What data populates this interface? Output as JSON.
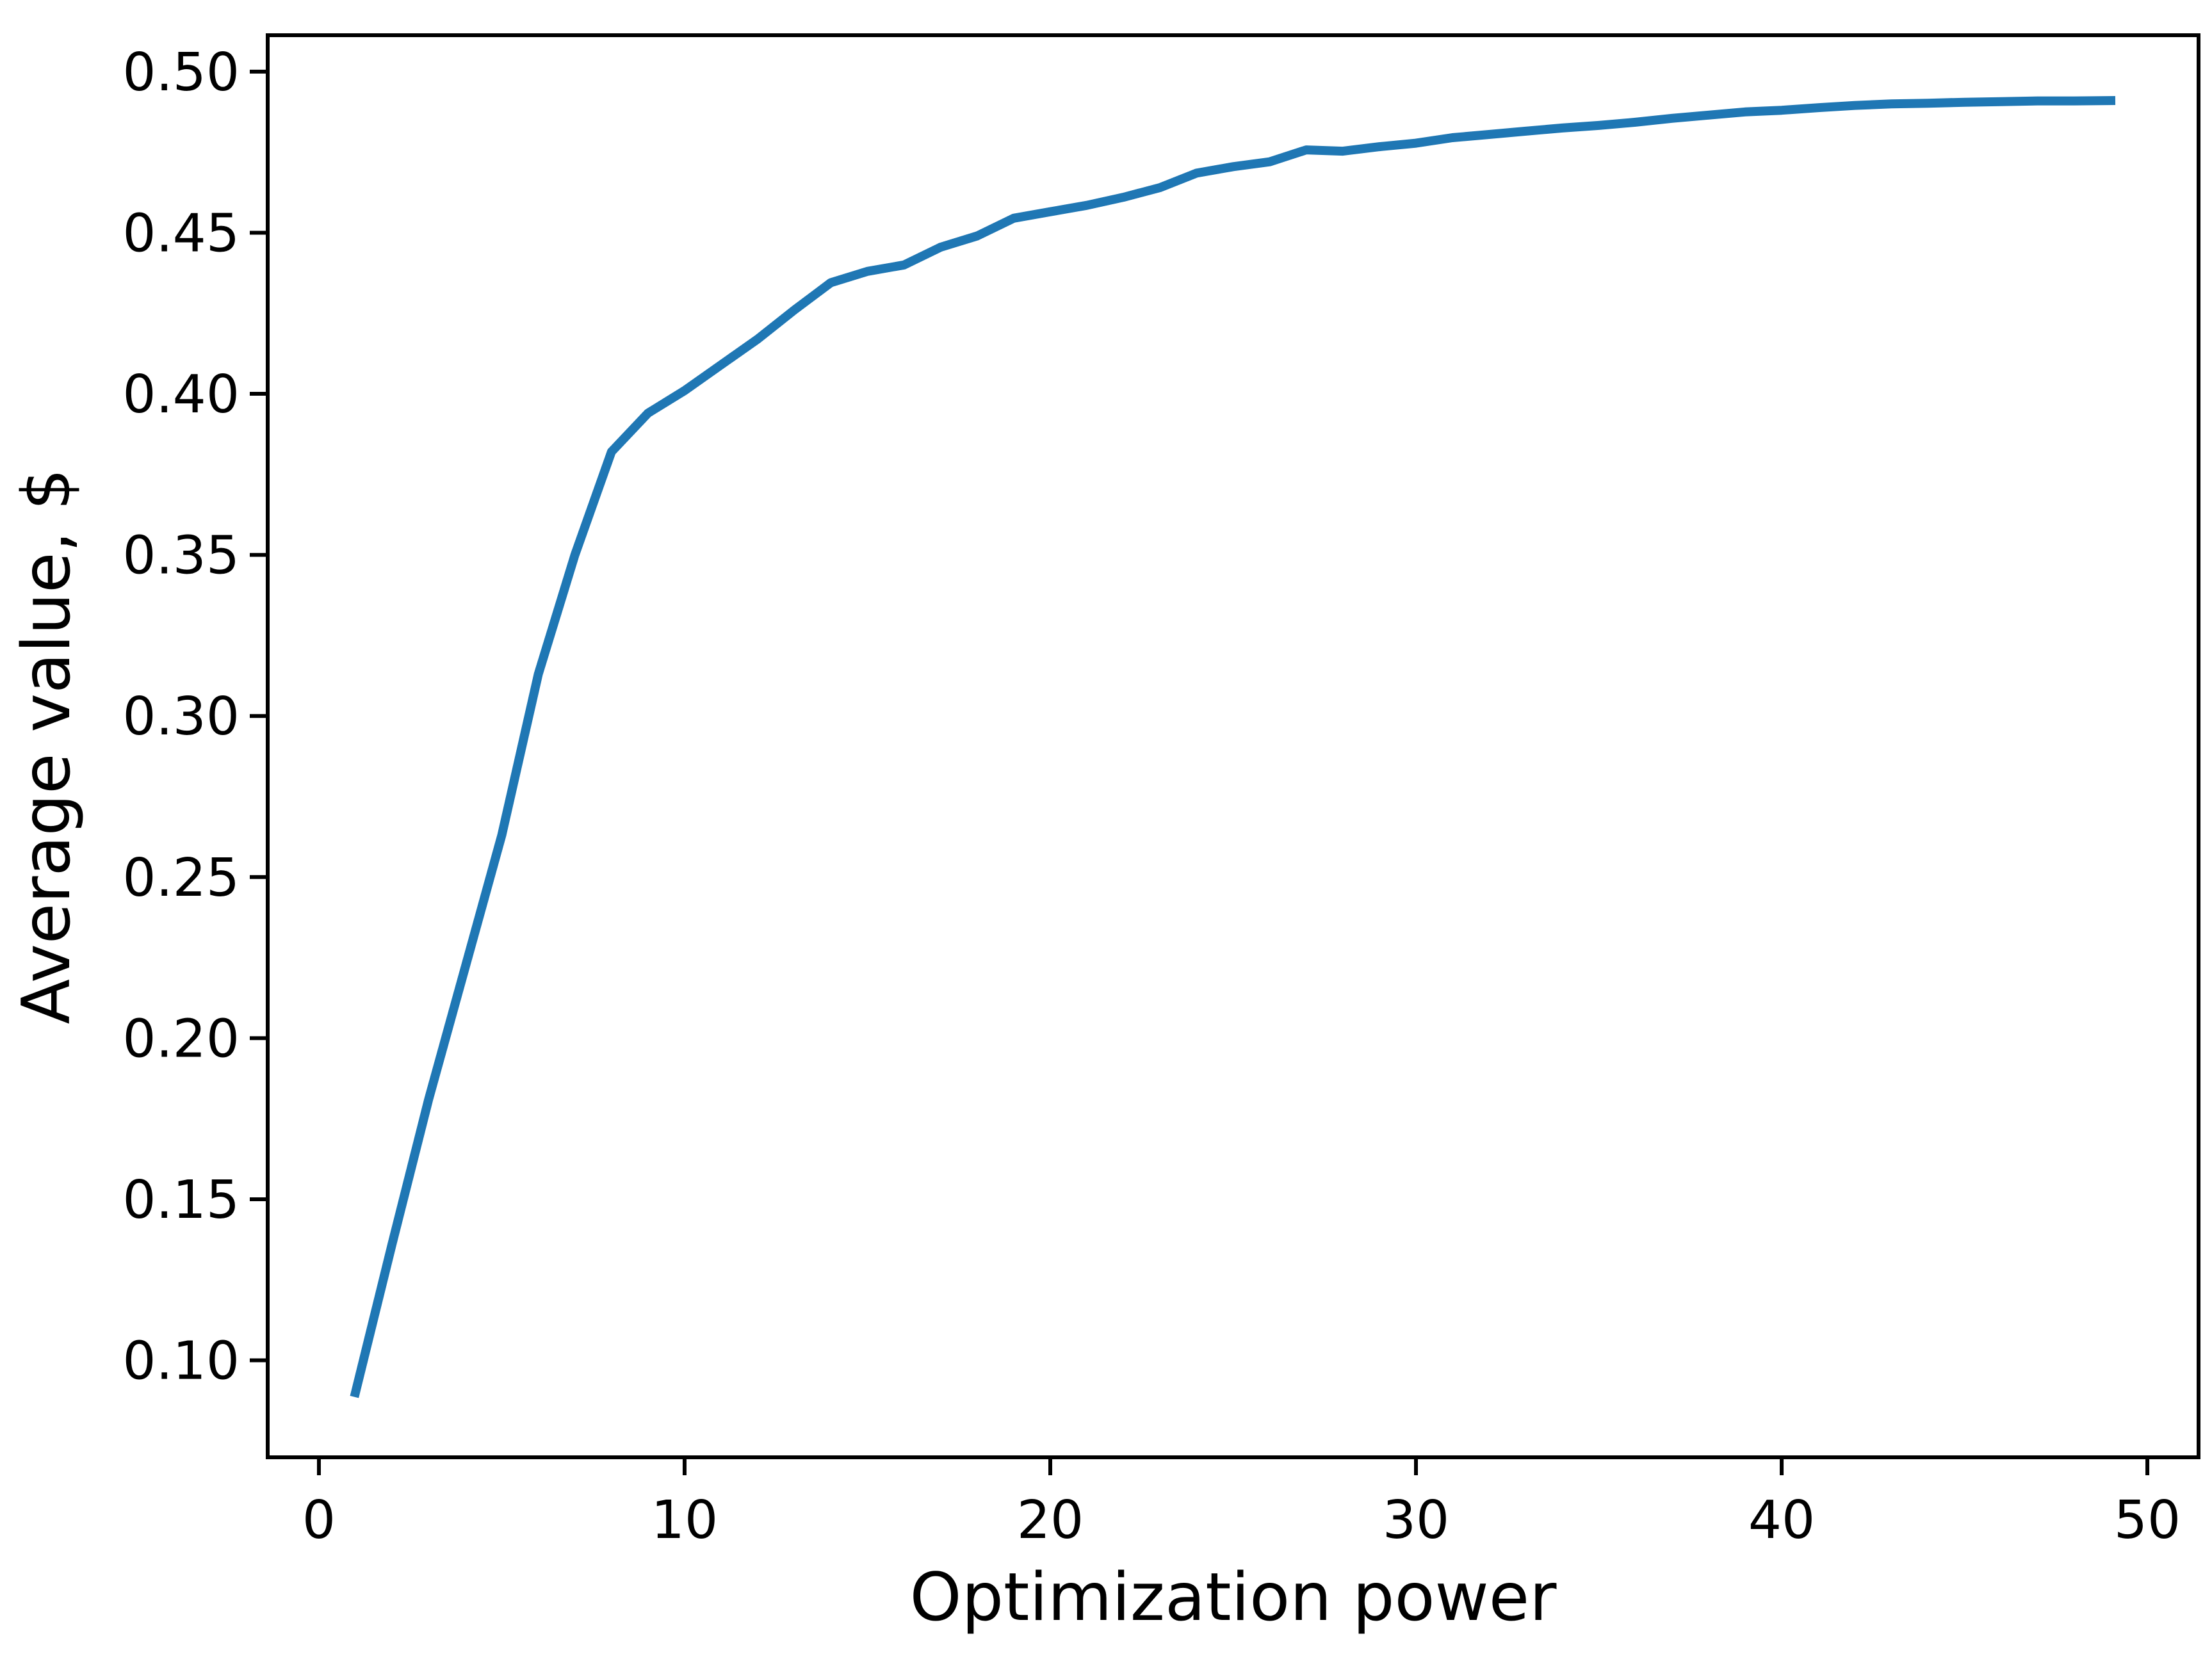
{
  "chart_data": {
    "type": "line",
    "title": "",
    "xlabel": "Optimization power",
    "ylabel": "Average value, $",
    "x": [
      1,
      2,
      3,
      4,
      5,
      6,
      7,
      8,
      9,
      10,
      11,
      12,
      13,
      14,
      15,
      16,
      17,
      18,
      19,
      20,
      21,
      22,
      23,
      24,
      25,
      26,
      27,
      28,
      29,
      30,
      31,
      32,
      33,
      34,
      35,
      36,
      37,
      38,
      39,
      40,
      41,
      42,
      43,
      44,
      45,
      46,
      47,
      48,
      49
    ],
    "y": [
      0.09,
      0.136,
      0.181,
      0.222,
      0.263,
      0.313,
      0.35,
      0.382,
      0.394,
      0.401,
      0.409,
      0.417,
      0.426,
      0.4345,
      0.438,
      0.44,
      0.4455,
      0.449,
      0.4545,
      0.4565,
      0.4585,
      0.461,
      0.464,
      0.4685,
      0.4705,
      0.472,
      0.4757,
      0.4753,
      0.4767,
      0.4778,
      0.4795,
      0.4805,
      0.4815,
      0.4825,
      0.4833,
      0.4843,
      0.4855,
      0.4865,
      0.4875,
      0.488,
      0.4888,
      0.4895,
      0.49,
      0.4902,
      0.4905,
      0.4907,
      0.4909,
      0.4909,
      0.491
    ],
    "series": [
      {
        "name": "average value",
        "color": "#1f77b4"
      }
    ],
    "xlim": [
      -1.4,
      51.4
    ],
    "ylim": [
      0.0699,
      0.5113
    ],
    "xticks": {
      "values": [
        0,
        10,
        20,
        30,
        40,
        50
      ],
      "labels": [
        "0",
        "10",
        "20",
        "30",
        "40",
        "50"
      ]
    },
    "yticks": {
      "values": [
        0.1,
        0.15,
        0.2,
        0.25,
        0.3,
        0.35,
        0.4,
        0.45,
        0.5
      ],
      "labels": [
        "0.10",
        "0.15",
        "0.20",
        "0.25",
        "0.30",
        "0.35",
        "0.40",
        "0.45",
        "0.50"
      ]
    },
    "grid": false,
    "legend": null,
    "colors": {
      "line": "#1f77b4",
      "axis": "#000000",
      "tick_label": "#000000",
      "background": "#ffffff"
    }
  }
}
